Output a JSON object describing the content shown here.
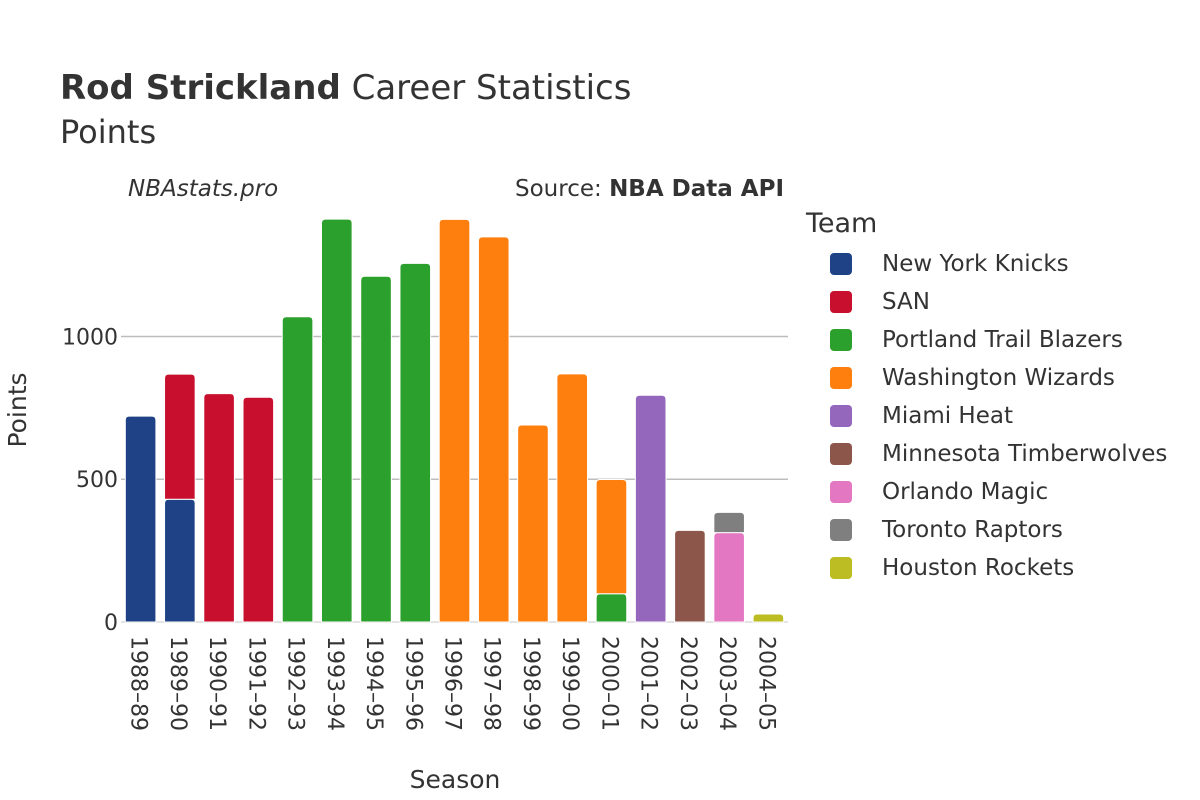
{
  "header": {
    "title_bold": "Rod Strickland",
    "title_rest": "Career Statistics",
    "subtitle": "Points",
    "watermark": "NBAstats.pro",
    "source_prefix": "Source: ",
    "source_name": "NBA Data API"
  },
  "legend": {
    "title": "Team",
    "items": [
      {
        "label": "New York Knicks",
        "color": "#1f4287"
      },
      {
        "label": "SAN",
        "color": "#c8102e"
      },
      {
        "label": "Portland Trail Blazers",
        "color": "#2ca02c"
      },
      {
        "label": "Washington Wizards",
        "color": "#ff7f0e"
      },
      {
        "label": "Miami Heat",
        "color": "#9467bd"
      },
      {
        "label": "Minnesota Timberwolves",
        "color": "#8c564b"
      },
      {
        "label": "Orlando Magic",
        "color": "#e377c2"
      },
      {
        "label": "Toronto Raptors",
        "color": "#7f7f7f"
      },
      {
        "label": "Houston Rockets",
        "color": "#bcbd22"
      }
    ]
  },
  "chart_data": {
    "type": "bar",
    "stacked": true,
    "xlabel": "Season",
    "ylabel": "Points",
    "ylim": [
      0,
      1450
    ],
    "yticks": [
      0,
      500,
      1000
    ],
    "grid": true,
    "legend_position": "right",
    "categories": [
      "1988–89",
      "1989–90",
      "1990–91",
      "1991–92",
      "1992–93",
      "1993–94",
      "1994–95",
      "1995–96",
      "1996–97",
      "1997–98",
      "1998–99",
      "1999–00",
      "2000–01",
      "2001–02",
      "2002–03",
      "2003–04",
      "2004–05"
    ],
    "series": [
      {
        "name": "New York Knicks",
        "values": [
          721,
          430,
          0,
          0,
          0,
          0,
          0,
          0,
          0,
          0,
          0,
          0,
          0,
          0,
          0,
          0,
          0
        ]
      },
      {
        "name": "SAN",
        "values": [
          0,
          438,
          800,
          787,
          0,
          0,
          0,
          0,
          0,
          0,
          0,
          0,
          0,
          0,
          0,
          0,
          0
        ]
      },
      {
        "name": "Portland Trail Blazers",
        "values": [
          0,
          0,
          0,
          0,
          1069,
          1411,
          1211,
          1256,
          0,
          0,
          0,
          0,
          99,
          0,
          0,
          0,
          0
        ]
      },
      {
        "name": "Washington Wizards",
        "values": [
          0,
          0,
          0,
          0,
          0,
          0,
          0,
          0,
          1410,
          1349,
          690,
          869,
          400,
          0,
          0,
          0,
          0
        ]
      },
      {
        "name": "Miami Heat",
        "values": [
          0,
          0,
          0,
          0,
          0,
          0,
          0,
          0,
          0,
          0,
          0,
          0,
          0,
          794,
          0,
          0,
          0
        ]
      },
      {
        "name": "Minnesota Timberwolves",
        "values": [
          0,
          0,
          0,
          0,
          0,
          0,
          0,
          0,
          0,
          0,
          0,
          0,
          0,
          0,
          321,
          0,
          0
        ]
      },
      {
        "name": "Orlando Magic",
        "values": [
          0,
          0,
          0,
          0,
          0,
          0,
          0,
          0,
          0,
          0,
          0,
          0,
          0,
          0,
          0,
          313,
          0
        ]
      },
      {
        "name": "Toronto Raptors",
        "values": [
          0,
          0,
          0,
          0,
          0,
          0,
          0,
          0,
          0,
          0,
          0,
          0,
          0,
          0,
          0,
          71,
          0
        ]
      },
      {
        "name": "Houston Rockets",
        "values": [
          0,
          0,
          0,
          0,
          0,
          0,
          0,
          0,
          0,
          0,
          0,
          0,
          0,
          0,
          0,
          0,
          28
        ]
      }
    ]
  }
}
